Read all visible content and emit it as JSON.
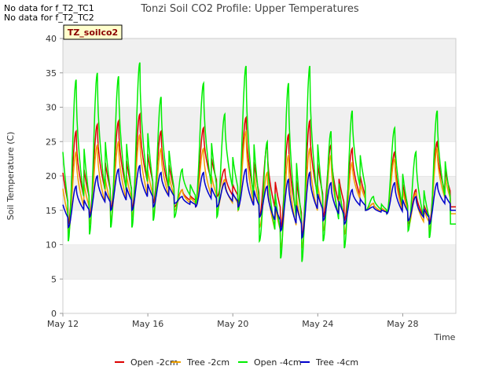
{
  "notes": [
    "No data for f_T2_TC1",
    "No data for f_T2_TC2"
  ],
  "site_label": "TZ_soilco2",
  "chart_data": {
    "type": "line",
    "title": "Tonzi Soil CO2 Profile: Upper Temperatures",
    "xlabel": "Time",
    "ylabel": "Soil Temperature (C)",
    "ylim": [
      0,
      40
    ],
    "yticks": [
      0,
      5,
      10,
      15,
      20,
      25,
      30,
      35,
      40
    ],
    "xlim": [
      "2024-05-12",
      "2024-05-30T12"
    ],
    "xticks": [
      {
        "label": "May 12",
        "date": "2024-05-12"
      },
      {
        "label": "May 16",
        "date": "2024-05-16"
      },
      {
        "label": "May 20",
        "date": "2024-05-20"
      },
      {
        "label": "May 24",
        "date": "2024-05-24"
      },
      {
        "label": "May 28",
        "date": "2024-05-28"
      }
    ],
    "grid": "horizontal bands",
    "legend_position": "bottom",
    "days": [
      "2024-05-12",
      "2024-05-13",
      "2024-05-14",
      "2024-05-15",
      "2024-05-16",
      "2024-05-17",
      "2024-05-18",
      "2024-05-19",
      "2024-05-20",
      "2024-05-21",
      "2024-05-22",
      "2024-05-23",
      "2024-05-24",
      "2024-05-25",
      "2024-05-26",
      "2024-05-27",
      "2024-05-28",
      "2024-05-29",
      "2024-05-30"
    ],
    "series": [
      {
        "name": "Open -2cm",
        "color": "#dd0000",
        "daily_min": [
          13.0,
          14.0,
          15.0,
          15.0,
          16.0,
          15.5,
          16.0,
          17.0,
          16.0,
          14.0,
          12.5,
          11.0,
          14.0,
          13.5,
          15.0,
          14.5,
          13.0,
          13.0,
          15.5
        ],
        "daily_max": [
          26.5,
          27.5,
          28.0,
          29.0,
          26.5,
          18.0,
          27.0,
          21.0,
          28.5,
          24.5,
          26.0,
          28.0,
          24.5,
          24.0,
          16.0,
          23.5,
          18.0,
          25.0,
          15.5
        ]
      },
      {
        "name": "Tree -2cm",
        "color": "#f0a000",
        "daily_min": [
          11.5,
          13.0,
          13.5,
          14.0,
          14.5,
          15.0,
          15.5,
          15.0,
          15.0,
          12.5,
          9.5,
          9.5,
          12.0,
          11.5,
          15.0,
          14.5,
          12.5,
          12.0,
          14.5
        ],
        "daily_max": [
          23.5,
          24.5,
          25.0,
          26.0,
          24.0,
          18.0,
          24.0,
          19.5,
          26.5,
          20.5,
          23.0,
          24.0,
          23.0,
          22.0,
          16.0,
          22.5,
          17.5,
          24.0,
          14.5
        ]
      },
      {
        "name": "Open -4cm",
        "color": "#00ee00",
        "daily_min": [
          10.5,
          11.5,
          12.5,
          12.5,
          13.5,
          14.0,
          16.0,
          14.0,
          15.0,
          10.5,
          8.0,
          7.5,
          10.5,
          9.5,
          15.0,
          14.5,
          12.0,
          11.0,
          13.0
        ],
        "daily_max": [
          34.0,
          35.0,
          34.5,
          36.5,
          31.5,
          21.0,
          33.5,
          29.0,
          36.0,
          25.0,
          33.5,
          36.0,
          26.5,
          29.5,
          17.0,
          27.0,
          23.5,
          29.5,
          13.0
        ]
      },
      {
        "name": "Tree -4cm",
        "color": "#0000cc",
        "daily_min": [
          12.5,
          14.0,
          15.0,
          15.0,
          15.5,
          16.0,
          15.5,
          15.5,
          15.5,
          14.0,
          12.0,
          11.0,
          13.5,
          13.0,
          15.0,
          14.5,
          13.5,
          13.0,
          15.0
        ],
        "daily_max": [
          18.5,
          20.0,
          21.0,
          21.5,
          20.5,
          17.0,
          20.5,
          19.0,
          21.0,
          18.5,
          19.5,
          20.5,
          19.0,
          18.0,
          15.5,
          19.0,
          17.0,
          19.0,
          15.0
        ]
      }
    ]
  }
}
